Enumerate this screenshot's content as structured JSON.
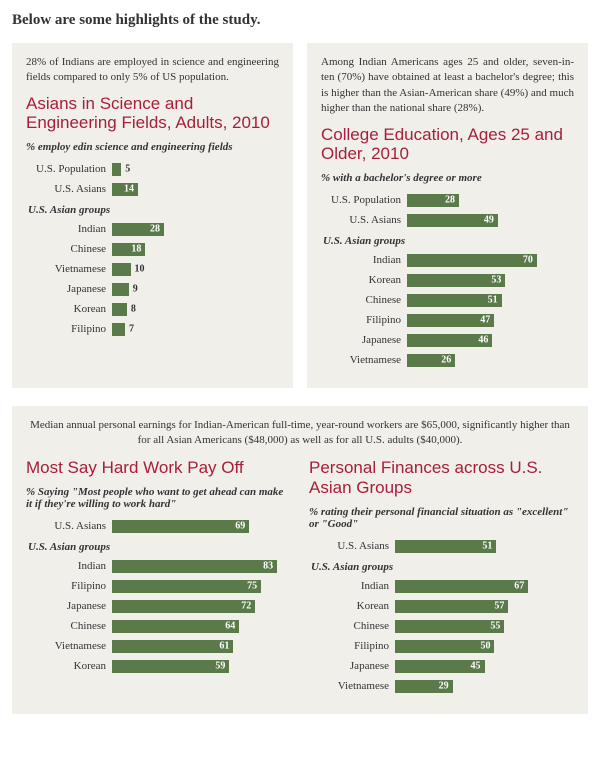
{
  "page_title": "Below are some highlights of the study.",
  "bar_color": "#5a7a4a",
  "title_color": "#a81e3a",
  "panel_bg": "#f0efea",
  "max_scale": 90,
  "charts": {
    "science": {
      "intro": "28% of Indians are employed in science and engineering fields compared to only 5% of US population.",
      "title": "Asians in Science and Engineering Fields, Adults, 2010",
      "subtitle": "% employ edin science and engineering fields",
      "top": [
        {
          "label": "U.S. Population",
          "value": 5
        },
        {
          "label": "U.S. Asians",
          "value": 14
        }
      ],
      "group_label": "U.S. Asian groups",
      "groups": [
        {
          "label": "Indian",
          "value": 28
        },
        {
          "label": "Chinese",
          "value": 18
        },
        {
          "label": "Vietnamese",
          "value": 10
        },
        {
          "label": "Japanese",
          "value": 9
        },
        {
          "label": "Korean",
          "value": 8
        },
        {
          "label": "Filipino",
          "value": 7
        }
      ]
    },
    "college": {
      "intro": "Among Indian Americans ages 25 and older, seven-in-ten (70%) have obtained at least a bachelor's degree; this is higher than the Asian-American share (49%) and much higher than the national share (28%).",
      "title": "College Education, Ages 25 and Older, 2010",
      "subtitle": "% with a bachelor's degree or more",
      "top": [
        {
          "label": "U.S. Population",
          "value": 28
        },
        {
          "label": "U.S. Asians",
          "value": 49
        }
      ],
      "group_label": "U.S. Asian groups",
      "groups": [
        {
          "label": "Indian",
          "value": 70
        },
        {
          "label": "Korean",
          "value": 53
        },
        {
          "label": "Chinese",
          "value": 51
        },
        {
          "label": "Filipino",
          "value": 47
        },
        {
          "label": "Japanese",
          "value": 46
        },
        {
          "label": "Vietnamese",
          "value": 26
        }
      ]
    },
    "hardwork": {
      "title": "Most Say Hard Work Pay Off",
      "subtitle": "% Saying \"Most people who want to get ahead can make it if they're willing to work hard\"",
      "top": [
        {
          "label": "U.S. Asians",
          "value": 69
        }
      ],
      "group_label": "U.S. Asian groups",
      "groups": [
        {
          "label": "Indian",
          "value": 83
        },
        {
          "label": "Filipino",
          "value": 75
        },
        {
          "label": "Japanese",
          "value": 72
        },
        {
          "label": "Chinese",
          "value": 64
        },
        {
          "label": "Vietnamese",
          "value": 61
        },
        {
          "label": "Korean",
          "value": 59
        }
      ]
    },
    "finances": {
      "title": "Personal Finances across U.S. Asian Groups",
      "subtitle": "% rating their personal financial situation as \"excellent\" or \"Good\"",
      "top": [
        {
          "label": "U.S. Asians",
          "value": 51
        }
      ],
      "group_label": "U.S. Asian groups",
      "groups": [
        {
          "label": "Indian",
          "value": 67
        },
        {
          "label": "Korean",
          "value": 57
        },
        {
          "label": "Chinese",
          "value": 55
        },
        {
          "label": "Filipino",
          "value": 50
        },
        {
          "label": "Japanese",
          "value": 45
        },
        {
          "label": "Vietnamese",
          "value": 29
        }
      ]
    }
  },
  "bottom_intro": "Median annual personal earnings for Indian-American full-time, year-round workers are $65,000, significantly higher than for all Asian Americans ($48,000) as well as for all U.S. adults ($40,000)."
}
